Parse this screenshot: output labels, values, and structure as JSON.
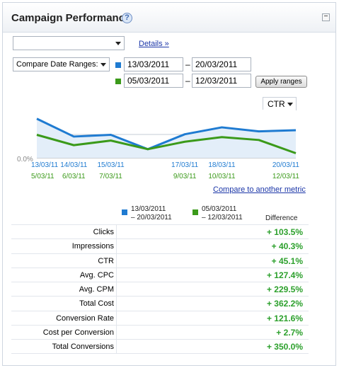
{
  "panel": {
    "title": "Campaign Performance",
    "help_icon": "?",
    "minimize_icon": "minimize-icon"
  },
  "controls": {
    "campaign_select_value": "",
    "details_link": "Details »",
    "compare_select_value": "Compare Date Ranges:",
    "range1": {
      "start": "13/03/2011",
      "end": "20/03/2011",
      "color": "#1f7bd1"
    },
    "range2": {
      "start": "05/03/2011",
      "end": "12/03/2011",
      "color": "#3b9a1a"
    },
    "dash": "–",
    "apply_button": "Apply ranges",
    "metric_select_value": "CTR",
    "compare_metric_link": "Compare to another metric"
  },
  "chart_data": {
    "type": "line",
    "y_axis_min_label": "0.0%",
    "series": [
      {
        "color": "#1f7bd1",
        "x_labels": [
          "13/03/11",
          "14/03/11",
          "15/03/11",
          "",
          "17/03/11",
          "18/03/11",
          "",
          "20/03/11"
        ],
        "values": [
          68,
          37,
          40,
          15,
          41,
          53,
          46,
          48
        ]
      },
      {
        "color": "#3b9a1a",
        "x_labels": [
          "5/03/11",
          "6/03/11",
          "7/03/11",
          "",
          "9/03/11",
          "10/03/11",
          "",
          "12/03/11"
        ],
        "values": [
          40,
          22,
          30,
          15,
          28,
          36,
          31,
          8
        ]
      }
    ]
  },
  "comparison": {
    "legend": [
      {
        "line1": "13/03/2011",
        "line2": "– 20/03/2011",
        "color": "#1f7bd1"
      },
      {
        "line1": "05/03/2011",
        "line2": "– 12/03/2011",
        "color": "#3b9a1a"
      }
    ],
    "difference_header": "Difference",
    "rows": [
      {
        "label": "Clicks",
        "value": "+ 103.5%"
      },
      {
        "label": "Impressions",
        "value": "+ 40.3%"
      },
      {
        "label": "CTR",
        "value": "+ 45.1%"
      },
      {
        "label": "Avg. CPC",
        "value": "+ 127.4%"
      },
      {
        "label": "Avg. CPM",
        "value": "+ 229.5%"
      },
      {
        "label": "Total Cost",
        "value": "+ 362.2%"
      },
      {
        "label": "Conversion Rate",
        "value": "+ 121.6%"
      },
      {
        "label": "Cost per Conversion",
        "value": "+ 2.7%"
      },
      {
        "label": "Total Conversions",
        "value": "+ 350.0%"
      }
    ]
  }
}
